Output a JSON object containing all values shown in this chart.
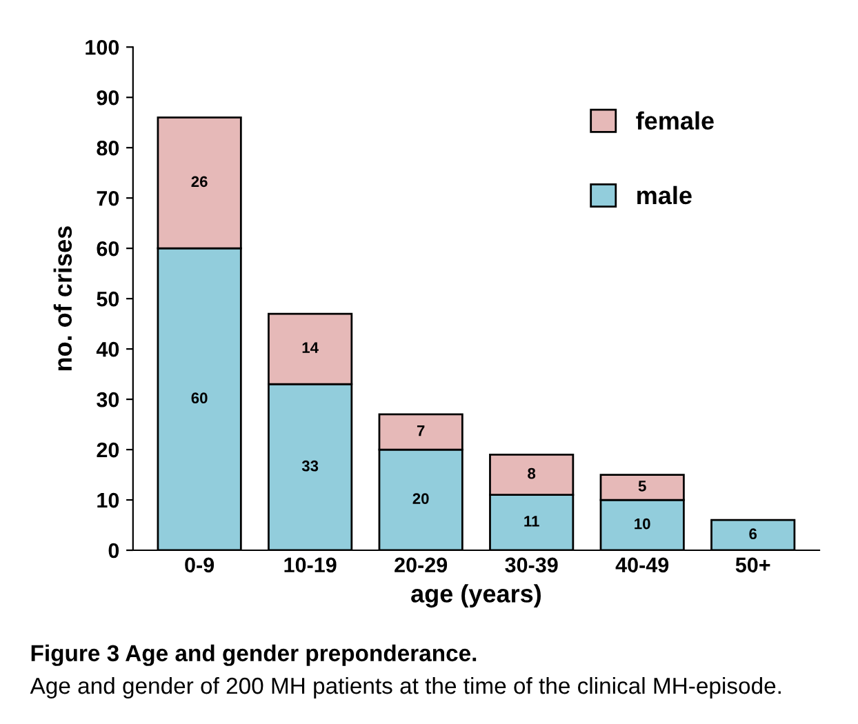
{
  "chart_data": {
    "type": "bar",
    "stacked": true,
    "categories": [
      "0-9",
      "10-19",
      "20-29",
      "30-39",
      "40-49",
      "50+"
    ],
    "series": [
      {
        "name": "male",
        "color": "#92cddc",
        "values": [
          60,
          33,
          20,
          11,
          10,
          6
        ],
        "value_labels": [
          "60",
          "33",
          "20",
          "11",
          "10",
          "6"
        ]
      },
      {
        "name": "female",
        "color": "#e6b9b8",
        "values": [
          26,
          14,
          7,
          8,
          5,
          null
        ],
        "value_labels": [
          "26",
          "14",
          "7",
          "8",
          "5",
          null
        ]
      }
    ],
    "xlabel": "age (years)",
    "ylabel": "no. of crises",
    "ylim": [
      0,
      100
    ],
    "yticks": [
      0,
      10,
      20,
      30,
      40,
      50,
      60,
      70,
      80,
      90,
      100
    ],
    "grid": false,
    "legend": "top right",
    "annotations": [
      "Figure 3 Age and gender preponderance.",
      "Age and gender of 200 MH patients at the time of the clinical MH-episode."
    ]
  }
}
